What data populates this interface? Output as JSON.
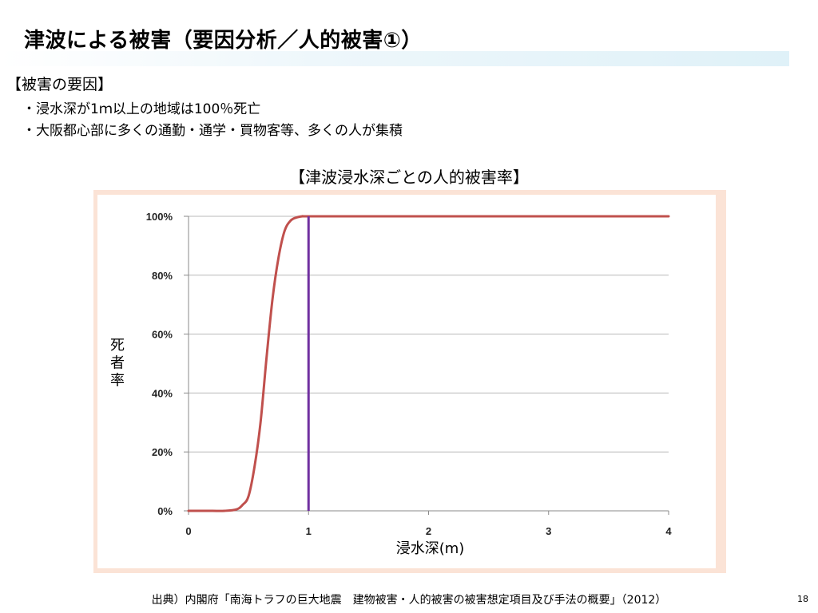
{
  "slide": {
    "title": "津波による被害（要因分析／人的被害①）",
    "section_heading": "【被害の要因】",
    "bullets": [
      "・浸水深が1ｍ以上の地域は100％死亡",
      "・大阪都心部に多くの通勤・通学・買物客等、多くの人が集積"
    ],
    "chart_heading": "【津波浸水深ごとの人的被害率】",
    "source": "出典）内閣府「南海トラフの巨大地震　建物被害・人的被害の被害想定項目及び手法の概要」（2012）",
    "page_number": "18"
  },
  "chart_data": {
    "type": "line",
    "xlabel": "浸水深(m)",
    "ylabel": "死者率",
    "xlim": [
      0,
      4
    ],
    "ylim": [
      0,
      100
    ],
    "x_ticks": [
      "0",
      "1",
      "2",
      "3",
      "4"
    ],
    "y_ticks": [
      "0%",
      "20%",
      "40%",
      "60%",
      "80%",
      "100%"
    ],
    "grid": "horizontal",
    "series": [
      {
        "color": "#c0504d",
        "x": [
          0,
          0.1,
          0.2,
          0.3,
          0.4,
          0.45,
          0.5,
          0.55,
          0.6,
          0.65,
          0.7,
          0.75,
          0.8,
          0.85,
          0.9,
          0.95,
          1.0,
          1.5,
          2.0,
          2.5,
          3.0,
          3.5,
          4.0
        ],
        "y": [
          0,
          0,
          0,
          0,
          0.5,
          2,
          5,
          15,
          30,
          52,
          72,
          86,
          95,
          98.5,
          99.6,
          100,
          100,
          100,
          100,
          100,
          100,
          100,
          100
        ]
      }
    ],
    "reference_line": {
      "x": 1,
      "color": "#7030a0"
    }
  }
}
